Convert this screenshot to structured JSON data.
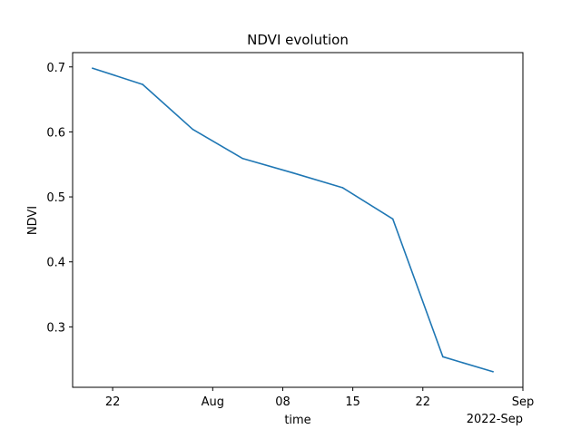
{
  "chart_data": {
    "type": "line",
    "title": "NDVI evolution",
    "xlabel": "time",
    "ylabel": "NDVI",
    "x_offset_label": "2022-Sep",
    "x": [
      "2022-07-20",
      "2022-07-25",
      "2022-07-30",
      "2022-08-04",
      "2022-08-09",
      "2022-08-14",
      "2022-08-19",
      "2022-08-24",
      "2022-08-29"
    ],
    "series": [
      {
        "values": [
          0.698,
          0.673,
          0.604,
          0.559,
          0.537,
          0.514,
          0.466,
          0.254,
          0.231
        ],
        "color": "#1f77b4"
      }
    ],
    "xlim": [
      "2022-07-18",
      "2022-09-01"
    ],
    "ylim": [
      0.207,
      0.722
    ],
    "x_ticks": [
      {
        "date": "2022-07-22",
        "label": "22"
      },
      {
        "date": "2022-08-01",
        "label": "Aug"
      },
      {
        "date": "2022-08-08",
        "label": "08"
      },
      {
        "date": "2022-08-15",
        "label": "15"
      },
      {
        "date": "2022-08-22",
        "label": "22"
      },
      {
        "date": "2022-09-01",
        "label": "Sep"
      }
    ],
    "y_ticks": [
      {
        "value": 0.3,
        "label": "0.3"
      },
      {
        "value": 0.4,
        "label": "0.4"
      },
      {
        "value": 0.5,
        "label": "0.5"
      },
      {
        "value": 0.6,
        "label": "0.6"
      },
      {
        "value": 0.7,
        "label": "0.7"
      }
    ],
    "grid": false,
    "legend": "none"
  }
}
